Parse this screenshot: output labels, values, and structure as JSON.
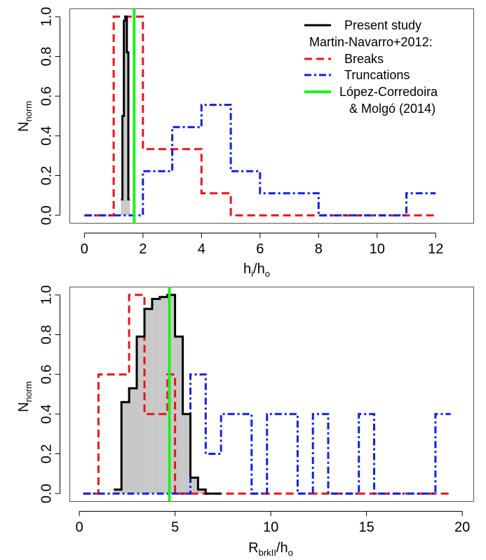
{
  "chart_data": [
    {
      "type": "step-histogram",
      "xlabel_main": "h",
      "xlabel_sub1": "i",
      "xlabel_mid": "/h",
      "xlabel_sub2": "o",
      "ylabel_main": "N",
      "ylabel_sub": "norm",
      "xlim": [
        -0.5,
        13.3
      ],
      "ylim": [
        -0.04,
        1.04
      ],
      "xticks": [
        0,
        2,
        4,
        6,
        8,
        10,
        12
      ],
      "yticks": [
        0.0,
        0.2,
        0.4,
        0.6,
        0.8,
        1.0
      ],
      "xtick_labels": [
        "0",
        "2",
        "4",
        "6",
        "8",
        "10",
        "12"
      ],
      "ytick_labels": [
        "0.0",
        "0.2",
        "0.4",
        "0.6",
        "0.8",
        "1.0"
      ],
      "series": [
        {
          "name": "Present study",
          "color": "#000000",
          "dash": "solid",
          "filled": true,
          "edges": [
            1.25,
            1.3,
            1.35,
            1.4,
            1.45,
            1.5,
            1.55
          ],
          "values": [
            0.08,
            0.5,
            0.98,
            1.0,
            0.82,
            0.08
          ]
        },
        {
          "name": "Breaks",
          "color": "#e8141a",
          "dash": "dashed",
          "filled": false,
          "edges": [
            0,
            1,
            2,
            3,
            4,
            5,
            6,
            7,
            8,
            9,
            10,
            11,
            12
          ],
          "values": [
            0,
            1.0,
            0.333,
            0.333,
            0.111,
            0,
            0,
            0,
            0,
            0,
            0,
            0
          ]
        },
        {
          "name": "Truncations",
          "color": "#1020e0",
          "dash": "dotdash",
          "filled": false,
          "edges": [
            0,
            1,
            2,
            3,
            4,
            5,
            6,
            7,
            8,
            9,
            10,
            11,
            12
          ],
          "values": [
            0,
            0,
            0.222,
            0.444,
            0.556,
            0.222,
            0.111,
            0.111,
            0,
            0,
            0,
            0.111
          ]
        }
      ],
      "vline": {
        "name": "López-Corredoira & Molgó (2014)",
        "x": 1.7,
        "color": "#1ef01e"
      },
      "legend": {
        "position": "top-right",
        "entries": [
          {
            "label": "Present study",
            "color": "#000000",
            "dash": "solid"
          },
          {
            "label": "Martin-Navarro+2012:",
            "color": null,
            "dash": null
          },
          {
            "label": "Breaks",
            "color": "#e8141a",
            "dash": "dashed"
          },
          {
            "label": "Truncations",
            "color": "#1020e0",
            "dash": "dotdash"
          },
          {
            "label": "López-Corredoira",
            "color": "#1ef01e",
            "dash": "solid"
          },
          {
            "label": "& Molgó (2014)",
            "color": null,
            "dash": null
          }
        ]
      }
    },
    {
      "type": "step-histogram",
      "xlabel_main": "R",
      "xlabel_sub1": "brkII",
      "xlabel_mid": "/h",
      "xlabel_sub2": "o",
      "ylabel_main": "N",
      "ylabel_sub": "norm",
      "xlim": [
        -0.5,
        20.6
      ],
      "ylim": [
        -0.04,
        1.04
      ],
      "xticks": [
        0,
        5,
        10,
        15,
        20
      ],
      "yticks": [
        0.0,
        0.2,
        0.4,
        0.6,
        0.8,
        1.0
      ],
      "xtick_labels": [
        "0",
        "5",
        "10",
        "15",
        "20"
      ],
      "ytick_labels": [
        "0.0",
        "0.2",
        "0.4",
        "0.6",
        "0.8",
        "1.0"
      ],
      "series": [
        {
          "name": "Present study",
          "color": "#000000",
          "dash": "solid",
          "filled": true,
          "edges": [
            1.8,
            2.2,
            2.6,
            3.0,
            3.4,
            3.8,
            4.2,
            4.6,
            5.0,
            5.4,
            5.8,
            6.2,
            6.6,
            7.0,
            7.4
          ],
          "values": [
            0.02,
            0.46,
            0.53,
            0.79,
            0.93,
            0.98,
            0.99,
            1.0,
            0.79,
            0.4,
            0.08,
            0.02,
            0.0,
            0.0
          ]
        },
        {
          "name": "Breaks",
          "color": "#e8141a",
          "dash": "dashed",
          "filled": false,
          "edges": [
            0.2,
            1.0,
            2.6,
            3.4,
            4.2,
            4.6,
            5.0,
            19.4
          ],
          "values": [
            0,
            0.6,
            1.0,
            0.4,
            0.4,
            0.6,
            0
          ]
        },
        {
          "name": "Truncations",
          "color": "#1020e0",
          "dash": "dotdash",
          "filled": false,
          "edges": [
            0.2,
            5.8,
            6.6,
            7.4,
            9.0,
            9.8,
            11.4,
            12.2,
            13.0,
            14.6,
            15.4,
            18.6,
            19.4
          ],
          "values": [
            0,
            0.6,
            0.2,
            0.4,
            0,
            0.4,
            0,
            0.4,
            0,
            0.4,
            0,
            0.4
          ]
        }
      ],
      "vline": {
        "name": "López-Corredoira & Molgó (2014)",
        "x": 4.7,
        "color": "#1ef01e"
      }
    }
  ]
}
